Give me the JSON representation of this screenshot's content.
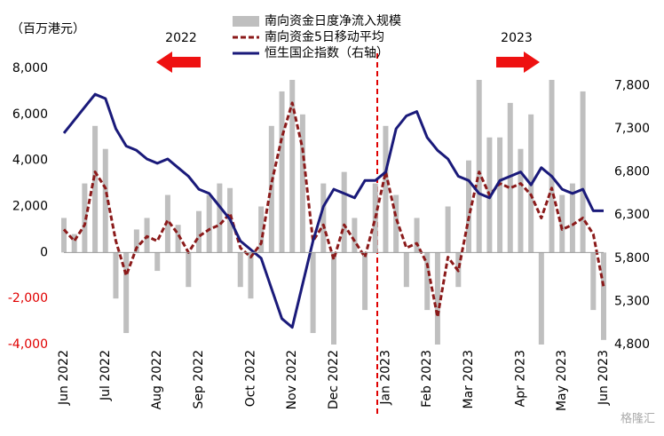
{
  "chart_data": {
    "type": "bar-line",
    "y_unit_label": "（百万港元）",
    "annotations": [
      "2022",
      "2023"
    ],
    "watermark": "格隆汇",
    "categories": [
      "Jun 2022",
      null,
      null,
      null,
      "Jul 2022",
      null,
      null,
      null,
      null,
      "Aug 2022",
      null,
      null,
      null,
      "Sep 2022",
      null,
      null,
      null,
      null,
      "Oct 2022",
      null,
      null,
      null,
      "Nov 2022",
      null,
      null,
      null,
      "Dec 2022",
      null,
      null,
      null,
      null,
      "Jan 2023",
      null,
      null,
      null,
      "Feb 2023",
      null,
      null,
      null,
      "Mar 2023",
      null,
      null,
      null,
      null,
      "Apr 2023",
      null,
      null,
      null,
      "May 2023",
      null,
      null,
      null,
      "Jun 2023"
    ],
    "series": [
      {
        "name": "南向资金日度净流入规模",
        "kind": "bar",
        "color": "#bfbfbf",
        "values": [
          1500,
          800,
          3000,
          5500,
          4500,
          -2000,
          -3500,
          1000,
          1500,
          -800,
          2500,
          1200,
          -1500,
          1800,
          2500,
          3000,
          2800,
          -1500,
          -2000,
          2000,
          5500,
          7000,
          7500,
          6000,
          -3500,
          3000,
          -4000,
          3500,
          1500,
          -2500,
          3000,
          5500,
          2500,
          -1500,
          1500,
          -2500,
          -4000,
          2000,
          -1500,
          4000,
          7500,
          5000,
          5000,
          6500,
          4500,
          6000,
          -4000,
          7500,
          2500,
          3000,
          7000,
          -2500,
          -3800
        ]
      },
      {
        "name": "南向资金5日移动平均",
        "kind": "dashed",
        "color": "#8b1a1a",
        "values": [
          1000,
          500,
          1200,
          3500,
          2800,
          500,
          -1000,
          200,
          700,
          500,
          1400,
          800,
          0,
          700,
          1000,
          1200,
          1700,
          200,
          -200,
          400,
          3000,
          5000,
          6500,
          4500,
          500,
          1200,
          -300,
          1200,
          500,
          -200,
          1500,
          3500,
          1500,
          200,
          400,
          -500,
          -2800,
          -200,
          -800,
          1500,
          3500,
          2500,
          3000,
          2800,
          3000,
          2500,
          1500,
          2800,
          1000,
          1200,
          1500,
          800,
          -1500
        ]
      },
      {
        "name": "恒生国企指数（右轴）",
        "kind": "line",
        "axis": "y2",
        "color": "#1a1a7a",
        "values": [
          7250,
          7400,
          7550,
          7700,
          7650,
          7300,
          7100,
          7050,
          6950,
          6900,
          6950,
          6850,
          6750,
          6600,
          6550,
          6400,
          6250,
          6000,
          5900,
          5800,
          5450,
          5100,
          5000,
          5500,
          6000,
          6400,
          6600,
          6550,
          6500,
          6700,
          6700,
          6800,
          7300,
          7450,
          7500,
          7200,
          7050,
          6950,
          6750,
          6700,
          6550,
          6500,
          6700,
          6750,
          6800,
          6650,
          6850,
          6750,
          6600,
          6550,
          6600,
          6350,
          6350
        ]
      }
    ],
    "ylim": [
      -4000,
      8000
    ],
    "yticks": [
      {
        "value": -4000,
        "label": "-4,000"
      },
      {
        "value": -2000,
        "label": "-2,000"
      },
      0,
      {
        "value": 2000,
        "label": "2,000"
      },
      {
        "value": 4000,
        "label": "4,000"
      },
      {
        "value": 6000,
        "label": "6,000"
      },
      {
        "value": 8000,
        "label": "8,000"
      }
    ],
    "y2lim": [
      4800,
      8000
    ],
    "y2ticks": [
      {
        "value": 4800,
        "label": "4,800"
      },
      {
        "value": 5300,
        "label": "5,300"
      },
      {
        "value": 5800,
        "label": "5,800"
      },
      {
        "value": 6300,
        "label": "6,300"
      },
      {
        "value": 6800,
        "label": "6,800"
      },
      {
        "value": 7300,
        "label": "7,300"
      },
      {
        "value": 7800,
        "label": "7,800"
      }
    ],
    "negative_tick_color": "#e00000"
  }
}
